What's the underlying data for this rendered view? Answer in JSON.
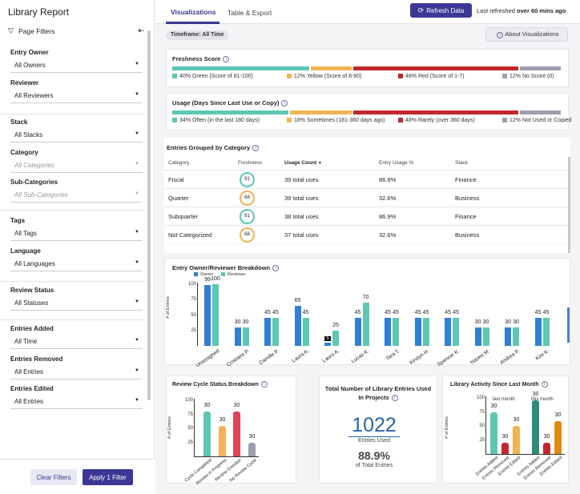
{
  "app_title": "Library Report",
  "sidebar": {
    "page_filters": "Page Filters",
    "filters": [
      {
        "label": "Entry Owner",
        "value": "All Owners",
        "disabled": false
      },
      {
        "label": "Reviewer",
        "value": "All Reviewers",
        "disabled": false
      },
      {
        "label": "Stack",
        "value": "All Stacks",
        "disabled": false
      },
      {
        "label": "Category",
        "value": "All Categories",
        "disabled": true
      },
      {
        "label": "Sub-Categories",
        "value": "All Sub-Categories",
        "disabled": true
      },
      {
        "label": "Tags",
        "value": "All Tags",
        "disabled": false
      },
      {
        "label": "Language",
        "value": "All Languages",
        "disabled": false
      },
      {
        "label": "Review Status",
        "value": "All Statuses",
        "disabled": false
      },
      {
        "label": "Entries Added",
        "value": "All Time",
        "disabled": false
      },
      {
        "label": "Entries Removed",
        "value": "All Entries",
        "disabled": false
      },
      {
        "label": "Entries Edited",
        "value": "All Entries",
        "disabled": false
      }
    ],
    "clear_label": "Clear Filters",
    "apply_label": "Apply 1 Filter"
  },
  "header": {
    "tabs": [
      "Visualizations",
      "Table & Export"
    ],
    "refresh_label": "Refresh Data",
    "last_refreshed_prefix": "Last refreshed",
    "last_refreshed_value": "over 60 mins ago"
  },
  "timeframe": "Timeframe: All Time",
  "about_label": "About Visualizations",
  "colors": {
    "green": "#5cc7b3",
    "yellow": "#f0b454",
    "red": "#c1272d",
    "grey": "#9e9eae",
    "owner": "#2f7fd6",
    "reviewer": "#5cc7b3"
  },
  "freshness": {
    "title": "Freshness Score",
    "segments": [
      {
        "pct": 40,
        "label": "40% Green (Score of 81-100)",
        "color": "#5cc7b3"
      },
      {
        "pct": 12,
        "label": "12% Yellow (Score of 8-80)",
        "color": "#f0b454"
      },
      {
        "pct": 48,
        "label": "48% Red (Score of 1-7)",
        "color": "#c1272d"
      },
      {
        "pct": 12,
        "label": "12% No Score (0)",
        "color": "#9e9eae"
      }
    ]
  },
  "usage": {
    "title": "Usage (Days Since Last Use or Copy)",
    "segments": [
      {
        "pct": 34,
        "label": "34% Often (in the last 180 days)",
        "color": "#5cc7b3"
      },
      {
        "pct": 18,
        "label": "18% Sometimes (181-360 days ago)",
        "color": "#f0b454"
      },
      {
        "pct": 48,
        "label": "48% Rarely (over 360 days)",
        "color": "#c1272d"
      },
      {
        "pct": 12,
        "label": "12% Not Used or Copied",
        "color": "#9e9eae"
      }
    ]
  },
  "category_table": {
    "title": "Entries Grouped by Category",
    "headers": [
      "Category",
      "Freshness",
      "Usage Count",
      "Entry Usage %",
      "Stack"
    ],
    "rows": [
      {
        "category": "Fiscal",
        "freshness": "91",
        "usage": "39 total uses",
        "pct": "86.9%",
        "stack": "Finance",
        "level": "g"
      },
      {
        "category": "Quarter",
        "freshness": "68",
        "usage": "39 total uses",
        "pct": "32.6%",
        "stack": "Business",
        "level": "y"
      },
      {
        "category": "Subquarter",
        "freshness": "91",
        "usage": "38 total uses",
        "pct": "86.9%",
        "stack": "Finance",
        "level": "g"
      },
      {
        "category": "Not Categorized",
        "freshness": "68",
        "usage": "37 total uses",
        "pct": "32.6%",
        "stack": "Business",
        "level": "y"
      }
    ]
  },
  "chart_data": [
    {
      "type": "bar",
      "title": "Entry Owner/Reviewer Breakdown",
      "ylabel": "# of Entries",
      "ylim": [
        0,
        100
      ],
      "yticks": [
        "100",
        "75",
        "50",
        "25"
      ],
      "categories": [
        "Unassigned",
        "Cristiano P.",
        "Camille P.",
        "Laura A.",
        "Lauro A.",
        "Lucas K.",
        "Tara T.",
        "Kirstyn H.",
        "Spencer K.",
        "Naomi M.",
        "Andrea P.",
        "Kim K."
      ],
      "series": [
        {
          "name": "Owner",
          "values": [
            99,
            30,
            45,
            65,
            5,
            45,
            45,
            45,
            45,
            30,
            30,
            45
          ]
        },
        {
          "name": "Reviewer",
          "values": [
            100,
            30,
            45,
            45,
            25,
            70,
            45,
            45,
            45,
            30,
            30,
            45
          ]
        }
      ]
    },
    {
      "type": "bar",
      "title": "Review Cycle Status Breakdown",
      "ylabel": "# of Entries",
      "ylim": [
        0,
        100
      ],
      "yticks": [
        "100",
        "75",
        "50",
        "25"
      ],
      "categories": [
        "Cycle Completed",
        "Review in Progress",
        "Review Overdue",
        "No Review Cycle"
      ],
      "values": [
        30,
        30,
        30,
        30
      ],
      "heights": [
        56,
        38,
        56,
        17
      ],
      "colors": [
        "#5cc7b3",
        "#f0b454",
        "#e0455a",
        "#9e9eae"
      ]
    },
    {
      "type": "bar",
      "title": "Library Activity Since Last Month",
      "ylabel": "# of Entries",
      "ylim": [
        0,
        100
      ],
      "yticks": [
        "100",
        "75",
        "50",
        "25"
      ],
      "group_labels": [
        "last month",
        "this month"
      ],
      "categories": [
        "Entries Added",
        "Entries Removed",
        "Entries Edited",
        "Entries Added",
        "Entries Removed",
        "Entries Edited"
      ],
      "values": [
        30,
        30,
        30,
        30,
        30,
        30
      ],
      "heights": [
        52,
        14,
        35,
        67,
        14,
        41
      ],
      "colors": [
        "#5cc7b3",
        "#c1272d",
        "#f0b454",
        "#2d8c78",
        "#c1272d",
        "#e08a10"
      ]
    }
  ],
  "total_card": {
    "title": "Total Number of Library Entries Used In Projects",
    "value": "1022",
    "value_label": "Entries Used",
    "pct": "88.9%",
    "pct_label": "of Total Entries"
  }
}
